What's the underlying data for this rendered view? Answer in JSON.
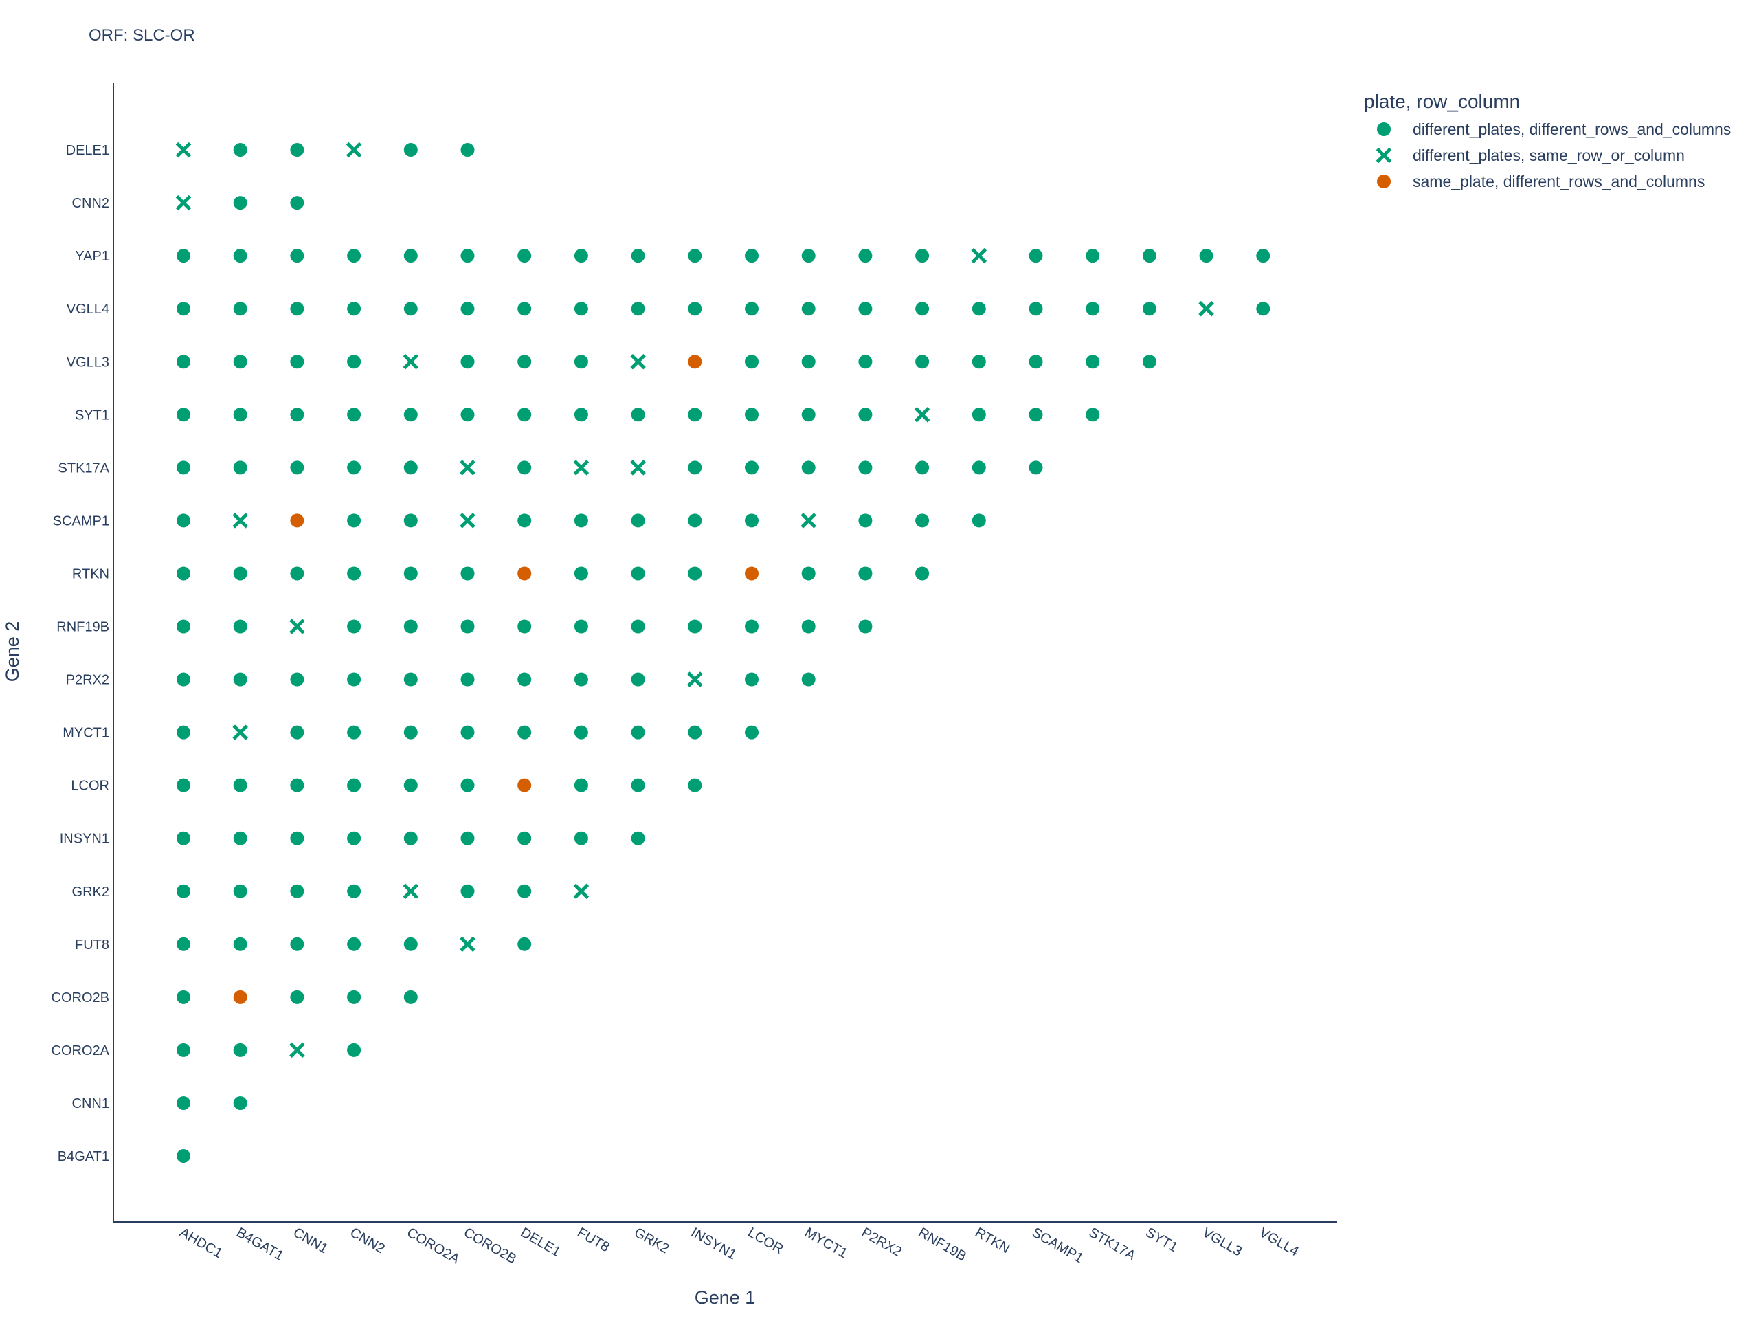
{
  "chart_data": {
    "type": "scatter",
    "title": "ORF: SLC-OR",
    "xlabel": "Gene 1",
    "ylabel": "Gene 2",
    "x_categories": [
      "AHDC1",
      "B4GAT1",
      "CNN1",
      "CNN2",
      "CORO2A",
      "CORO2B",
      "DELE1",
      "FUT8",
      "GRK2",
      "INSYN1",
      "LCOR",
      "MYCT1",
      "P2RX2",
      "RNF19B",
      "RTKN",
      "SCAMP1",
      "STK17A",
      "SYT1",
      "VGLL3",
      "VGLL4"
    ],
    "y_categories": [
      "B4GAT1",
      "CNN1",
      "CORO2A",
      "CORO2B",
      "FUT8",
      "GRK2",
      "INSYN1",
      "LCOR",
      "MYCT1",
      "P2RX2",
      "RNF19B",
      "RTKN",
      "SCAMP1",
      "STK17A",
      "SYT1",
      "VGLL3",
      "VGLL4",
      "YAP1",
      "CNN2",
      "DELE1"
    ],
    "grid": false,
    "legend": {
      "title": "plate, row_column",
      "placement": "top-right",
      "entries": [
        {
          "key": "A",
          "label": "different_plates, different_rows_and_columns",
          "symbol": "circle",
          "color": "#009E73"
        },
        {
          "key": "B",
          "label": "different_plates, same_row_or_column",
          "symbol": "x",
          "color": "#009E73"
        },
        {
          "key": "C",
          "label": "same_plate, different_rows_and_columns",
          "symbol": "circle",
          "color": "#D55E00"
        }
      ]
    },
    "rows": [
      {
        "gene2": "DELE1",
        "codes": "BAABAA"
      },
      {
        "gene2": "CNN2",
        "codes": "BAA"
      },
      {
        "gene2": "YAP1",
        "codes": "AAAAAAAAAAAAAABAAAAA"
      },
      {
        "gene2": "VGLL4",
        "codes": "AAAAAAAAAAAAAAAAAABA"
      },
      {
        "gene2": "VGLL3",
        "codes": "AAAABAAABCAAAAAAAA"
      },
      {
        "gene2": "SYT1",
        "codes": "AAAAAAAAAAAAABAAA"
      },
      {
        "gene2": "STK17A",
        "codes": "AAAAABABBAAAAAAA"
      },
      {
        "gene2": "SCAMP1",
        "codes": "ABCAABAAAAABAAA"
      },
      {
        "gene2": "RTKN",
        "codes": "AAAAAACAAACAAA"
      },
      {
        "gene2": "RNF19B",
        "codes": "AABAAAAAAAAAA"
      },
      {
        "gene2": "P2RX2",
        "codes": "AAAAAAAAABAA"
      },
      {
        "gene2": "MYCT1",
        "codes": "ABAAAAAAAAA"
      },
      {
        "gene2": "LCOR",
        "codes": "AAAAAACAAA"
      },
      {
        "gene2": "INSYN1",
        "codes": "AAAAAAAAA"
      },
      {
        "gene2": "GRK2",
        "codes": "AAAABAAB"
      },
      {
        "gene2": "FUT8",
        "codes": "AAAAABA"
      },
      {
        "gene2": "CORO2B",
        "codes": "ACAAA"
      },
      {
        "gene2": "CORO2A",
        "codes": "AABA"
      },
      {
        "gene2": "CNN1",
        "codes": "AA"
      },
      {
        "gene2": "B4GAT1",
        "codes": "A"
      }
    ]
  }
}
